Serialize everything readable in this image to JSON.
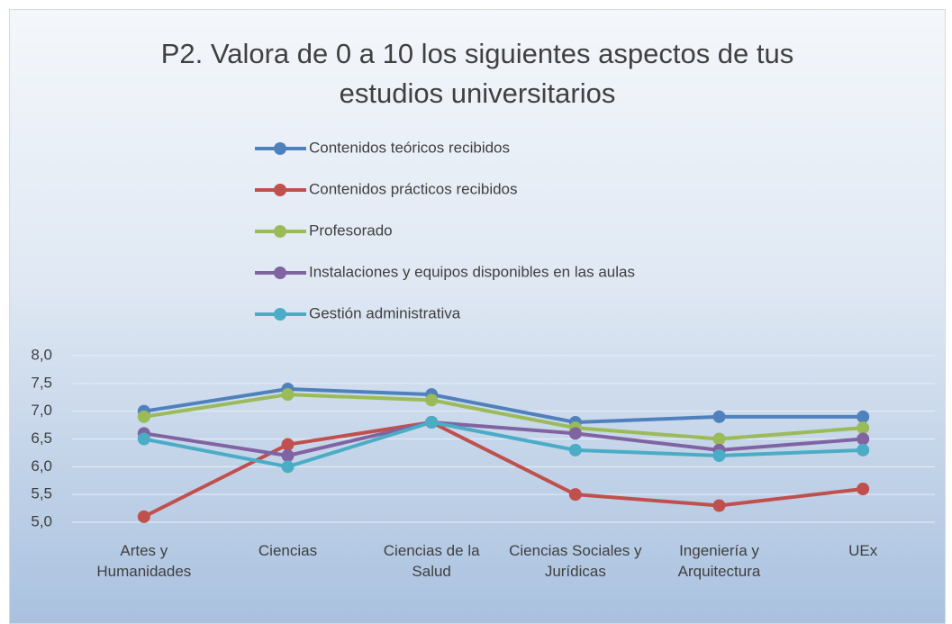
{
  "chart_data": {
    "type": "line",
    "title": "P2. Valora de 0 a 10 los siguientes aspectos de tus estudios universitarios",
    "categories": [
      "Artes y Humanidades",
      "Ciencias",
      "Ciencias de la Salud",
      "Ciencias Sociales y Jurídicas",
      "Ingeniería y Arquitectura",
      "UEx"
    ],
    "series": [
      {
        "name": "Contenidos teóricos recibidos",
        "color": "#4f81bd",
        "values": [
          7.0,
          7.4,
          7.3,
          6.8,
          6.9,
          6.9
        ]
      },
      {
        "name": "Contenidos prácticos recibidos",
        "color": "#c0504d",
        "values": [
          5.1,
          6.4,
          6.8,
          5.5,
          5.3,
          5.6
        ]
      },
      {
        "name": "Profesorado",
        "color": "#9bbb59",
        "values": [
          6.9,
          7.3,
          7.2,
          6.7,
          6.5,
          6.7
        ]
      },
      {
        "name": "Instalaciones y equipos disponibles en las aulas",
        "color": "#8064a2",
        "values": [
          6.6,
          6.2,
          6.8,
          6.6,
          6.3,
          6.5
        ]
      },
      {
        "name": "Gestión administrativa",
        "color": "#4bacc6",
        "values": [
          6.5,
          6.0,
          6.8,
          6.3,
          6.2,
          6.3
        ]
      }
    ],
    "ylim": [
      5,
      8
    ],
    "yticks": [
      {
        "value": 5,
        "label": "5,0"
      },
      {
        "value": 5.5,
        "label": "5,5"
      },
      {
        "value": 6,
        "label": "6,0"
      },
      {
        "value": 6.5,
        "label": "6,5"
      },
      {
        "value": 7,
        "label": "7,0"
      },
      {
        "value": 7.5,
        "label": "7,5"
      },
      {
        "value": 8,
        "label": "8,0"
      }
    ],
    "grid": true,
    "legend": "top"
  }
}
